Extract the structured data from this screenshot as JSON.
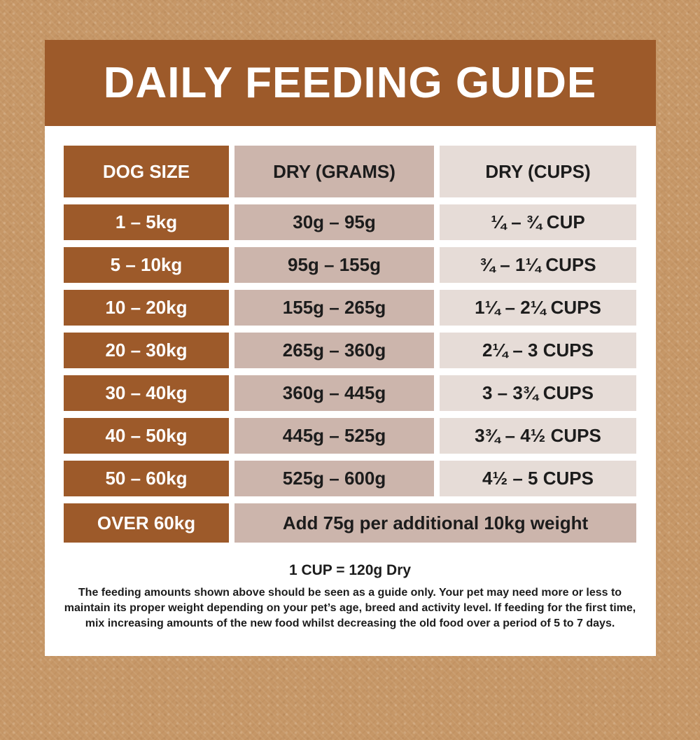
{
  "header": {
    "title": "DAILY FEEDING GUIDE"
  },
  "table": {
    "headers": [
      {
        "label": "DOG SIZE"
      },
      {
        "label": "DRY (GRAMS)"
      },
      {
        "label": "DRY (CUPS)"
      }
    ],
    "rows": [
      {
        "size": "1 – 5kg",
        "grams": "30g – 95g",
        "cups": "¼ – ¾ CUP"
      },
      {
        "size": "5 – 10kg",
        "grams": "95g – 155g",
        "cups": "¾ – 1¼ CUPS"
      },
      {
        "size": "10 – 20kg",
        "grams": "155g – 265g",
        "cups": "1¼ – 2¼ CUPS"
      },
      {
        "size": "20 – 30kg",
        "grams": "265g – 360g",
        "cups": "2¼ – 3 CUPS"
      },
      {
        "size": "30 – 40kg",
        "grams": "360g – 445g",
        "cups": "3 – 3¾ CUPS"
      },
      {
        "size": "40 – 50kg",
        "grams": "445g – 525g",
        "cups": "3¾ – 4½ CUPS"
      },
      {
        "size": "50 – 60kg",
        "grams": "525g – 600g",
        "cups": "4½ – 5 CUPS"
      },
      {
        "size": "OVER 60kg",
        "note": "Add 75g per additional 10kg weight"
      }
    ]
  },
  "footer": {
    "cup_note": "1 CUP = 120g Dry",
    "disclaimer": "The feeding amounts shown above should be seen as a guide only. Your pet may need more or less to maintain its proper weight depending on your pet’s age, breed and activity level. If feeding for the first time, mix increasing amounts of the new food whilst decreasing the old food over a period of 5 to 7 days."
  },
  "colors": {
    "background_tan": "#c69767",
    "brand_brown": "#9d5a2a",
    "cell_pink": "#ccb5ac",
    "cell_light_pink": "#e6dcd7",
    "card_white": "#ffffff",
    "text_dark": "#1c1c1c",
    "text_white": "#ffffff"
  }
}
